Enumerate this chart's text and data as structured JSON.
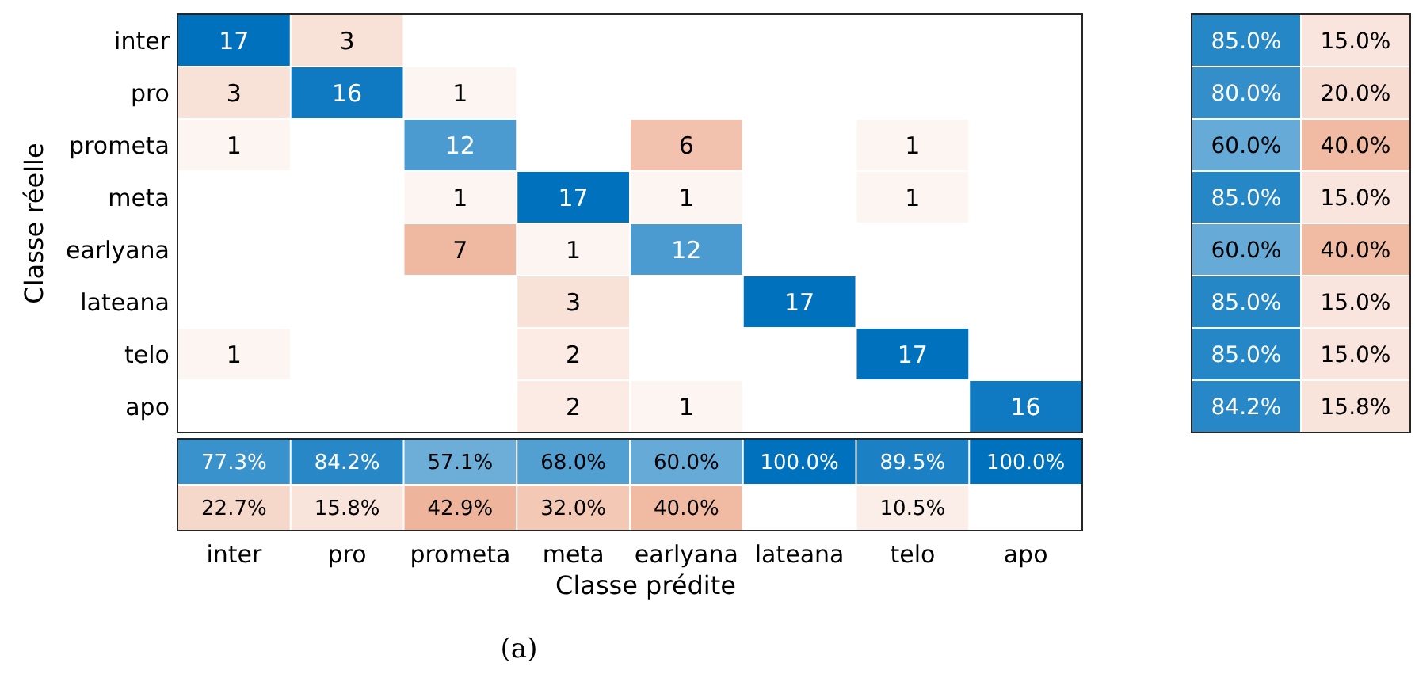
{
  "chart_data": [
    {
      "type": "heatmap",
      "ylabel": "Classe réelle",
      "data_labels": true,
      "categories": [
        "inter",
        "pro",
        "prometa",
        "meta",
        "earlyana",
        "lateana",
        "telo",
        "apo"
      ],
      "y_categories": [
        "inter",
        "pro",
        "prometa",
        "meta",
        "earlyana",
        "lateana",
        "telo",
        "apo"
      ],
      "cells": [
        [
          17,
          3,
          null,
          null,
          null,
          null,
          null,
          null
        ],
        [
          3,
          16,
          1,
          null,
          null,
          null,
          null,
          null
        ],
        [
          1,
          null,
          12,
          null,
          6,
          null,
          1,
          null
        ],
        [
          null,
          null,
          1,
          17,
          1,
          null,
          1,
          null
        ],
        [
          null,
          null,
          7,
          1,
          12,
          null,
          null,
          null
        ],
        [
          null,
          null,
          null,
          3,
          null,
          17,
          null,
          null
        ],
        [
          1,
          null,
          null,
          2,
          null,
          null,
          17,
          null
        ],
        [
          null,
          null,
          null,
          2,
          1,
          null,
          null,
          16
        ]
      ]
    },
    {
      "type": "heatmap",
      "categories": [
        null,
        null
      ],
      "y_categories": [
        null,
        null,
        null,
        null,
        null,
        null,
        null,
        null
      ],
      "cells": [
        [
          85.0,
          15.0
        ],
        [
          80.0,
          20.0
        ],
        [
          60.0,
          40.0
        ],
        [
          85.0,
          15.0
        ],
        [
          60.0,
          40.0
        ],
        [
          85.0,
          15.0
        ],
        [
          85.0,
          15.0
        ],
        [
          84.2,
          15.8
        ]
      ],
      "cell_labels": [
        [
          "85.0%",
          "15.0%"
        ],
        [
          "80.0%",
          "20.0%"
        ],
        [
          "60.0%",
          "40.0%"
        ],
        [
          "85.0%",
          "15.0%"
        ],
        [
          "60.0%",
          "40.0%"
        ],
        [
          "85.0%",
          "15.0%"
        ],
        [
          "85.0%",
          "15.0%"
        ],
        [
          "84.2%",
          "15.8%"
        ]
      ]
    },
    {
      "type": "heatmap",
      "xlabel": "Classe prédite",
      "annotations": [
        "(a)"
      ],
      "categories": [
        null,
        null,
        null,
        null,
        null,
        null,
        null,
        null
      ],
      "y_categories": [
        null,
        null
      ],
      "cells": [
        [
          77.3,
          84.2,
          57.1,
          68.0,
          60.0,
          100.0,
          89.5,
          100.0
        ],
        [
          22.7,
          15.8,
          42.9,
          32.0,
          40.0,
          null,
          10.5,
          null
        ]
      ],
      "cell_labels": [
        [
          "77.3%",
          "84.2%",
          "57.1%",
          "68.0%",
          "60.0%",
          "100.0%",
          "89.5%",
          "100.0%"
        ],
        [
          "22.7%",
          "15.8%",
          "42.9%",
          "32.0%",
          "40.0%",
          null,
          "10.5%",
          null
        ]
      ]
    }
  ]
}
